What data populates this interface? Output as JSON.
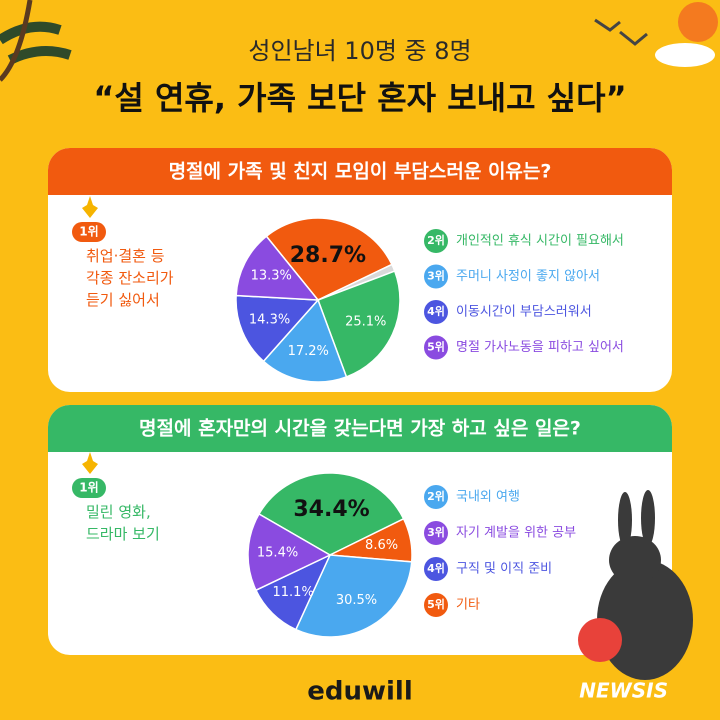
{
  "header": {
    "subtitle": "성인남녀 10명 중 8명",
    "title": "“설 연휴, 가족 보단 혼자 보내고 싶다”"
  },
  "chart_data": [
    {
      "type": "pie",
      "title": "명절에 가족 및 친지 모임이 부담스러운 이유는?",
      "badge_color": "#f15a0f",
      "slices": [
        {
          "rank": "1위",
          "name": "취업·결혼 등\n각종 잔소리가\n듣기 싫어서",
          "value": 28.7,
          "value_label": "28.7%",
          "color": "#f15a0f"
        },
        {
          "rank": null,
          "name": null,
          "value": 1.4,
          "color": "#d9d9d9"
        },
        {
          "rank": "2위",
          "name": "개인적인 휴식 시간이 필요해서",
          "value": 25.1,
          "value_label": "25.1%",
          "color": "#36b866"
        },
        {
          "rank": "3위",
          "name": "주머니 사정이 좋지 않아서",
          "value": 17.2,
          "value_label": "17.2%",
          "color": "#4aa8ef"
        },
        {
          "rank": "4위",
          "name": "이동시간이 부담스러워서",
          "value": 14.3,
          "value_label": "14.3%",
          "color": "#4c55e0"
        },
        {
          "rank": "5위",
          "name": "명절 가사노동을 피하고 싶어서",
          "value": 13.3,
          "value_label": "13.3%",
          "color": "#8a4be0"
        }
      ]
    },
    {
      "type": "pie",
      "title": "명절에 혼자만의 시간을 갖는다면 가장 하고 싶은 일은?",
      "badge_color": "#36b866",
      "slices": [
        {
          "rank": "1위",
          "name": "밀린 영화,\n드라마 보기",
          "value": 34.4,
          "value_label": "34.4%",
          "color": "#36b866"
        },
        {
          "rank": "5위",
          "name": "기타",
          "value": 8.6,
          "value_label": "8.6%",
          "color": "#f15a0f"
        },
        {
          "rank": "2위",
          "name": "국내외 여행",
          "value": 30.5,
          "value_label": "30.5%",
          "color": "#4aa8ef"
        },
        {
          "rank": "4위",
          "name": "구직 및 이직 준비",
          "value": 11.1,
          "value_label": "11.1%",
          "color": "#4c55e0"
        },
        {
          "rank": "3위",
          "name": "자기 계발을 위한 공부",
          "value": 15.4,
          "value_label": "15.4%",
          "color": "#8a4be0"
        }
      ]
    }
  ],
  "footer": {
    "brand": "eduwill",
    "source": "NEWSIS"
  }
}
